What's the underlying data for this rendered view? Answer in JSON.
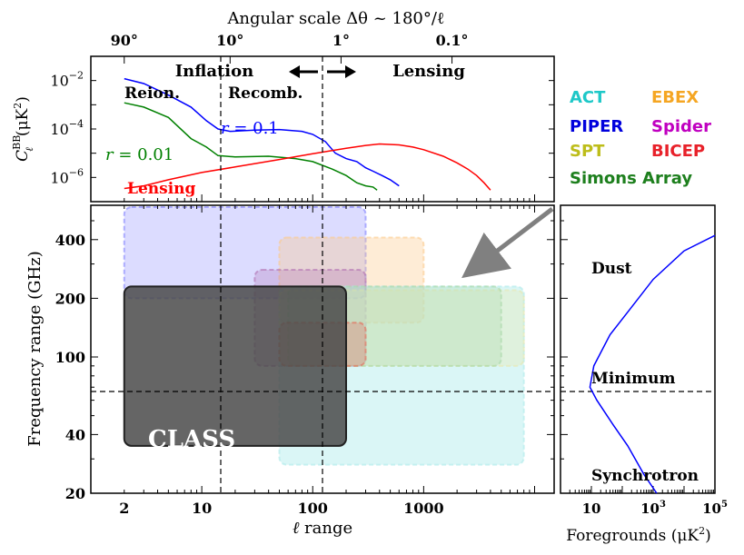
{
  "chart_data": [
    {
      "type": "line",
      "title": "Angular scale Δθ ~ 180°/ℓ",
      "top_axis_ticks": [
        "90°",
        "10°",
        "1°",
        "0.1°"
      ],
      "ylabel_main": "C",
      "ylabel_sup": "BB",
      "ylabel_sub": "ℓ",
      "ylabel_unit": "(μK",
      "ylabel_unit_sup": "2",
      "ylabel_unit_end": ")",
      "y_ticks": [
        {
          "base": "10",
          "exp": "−2"
        },
        {
          "base": "10",
          "exp": "−4"
        },
        {
          "base": "10",
          "exp": "−6"
        }
      ],
      "xscale": "log",
      "xlim": [
        1,
        15000
      ],
      "yscale": "log",
      "ylim": [
        1e-07,
        0.1
      ],
      "region_labels": {
        "inflation": "Inflation",
        "lensing": "Lensing",
        "reion": "Reion.",
        "recomb": "Recomb."
      },
      "series": [
        {
          "name": "r = 0.1",
          "color": "#0000ff",
          "points": [
            [
              2,
              0.012
            ],
            [
              3,
              0.0075
            ],
            [
              5,
              0.0025
            ],
            [
              8,
              0.0008
            ],
            [
              11,
              0.00022
            ],
            [
              14,
              0.0001
            ],
            [
              18,
              8e-05
            ],
            [
              30,
              9e-05
            ],
            [
              50,
              9.5e-05
            ],
            [
              80,
              8e-05
            ],
            [
              100,
              6e-05
            ],
            [
              130,
              3e-05
            ],
            [
              160,
              1e-05
            ],
            [
              200,
              6e-06
            ],
            [
              250,
              4.5e-06
            ],
            [
              300,
              2.5e-06
            ],
            [
              350,
              1.8e-06
            ],
            [
              420,
              1.2e-06
            ],
            [
              500,
              8e-07
            ],
            [
              600,
              4.5e-07
            ]
          ]
        },
        {
          "name": "r = 0.01",
          "color": "#008000",
          "points": [
            [
              2,
              0.0012
            ],
            [
              3,
              0.0008
            ],
            [
              5,
              0.0003
            ],
            [
              8,
              4e-05
            ],
            [
              11,
              1.8e-05
            ],
            [
              14,
              8e-06
            ],
            [
              20,
              7e-06
            ],
            [
              40,
              7.5e-06
            ],
            [
              70,
              6e-06
            ],
            [
              100,
              4.5e-06
            ],
            [
              150,
              2.2e-06
            ],
            [
              200,
              1.2e-06
            ],
            [
              250,
              6e-07
            ],
            [
              300,
              4.5e-07
            ],
            [
              350,
              4e-07
            ],
            [
              380,
              3e-07
            ]
          ]
        },
        {
          "name": "Lensing",
          "color": "#ff0000",
          "points": [
            [
              2,
              3.5e-07
            ],
            [
              3,
              4.5e-07
            ],
            [
              5,
              8e-07
            ],
            [
              10,
              1.6e-06
            ],
            [
              20,
              2.7e-06
            ],
            [
              50,
              5.5e-06
            ],
            [
              100,
              9.5e-06
            ],
            [
              200,
              1.6e-05
            ],
            [
              300,
              2.1e-05
            ],
            [
              400,
              2.4e-05
            ],
            [
              600,
              2.2e-05
            ],
            [
              800,
              1.8e-05
            ],
            [
              1000,
              1.4e-05
            ],
            [
              1500,
              7.5e-06
            ],
            [
              2000,
              4e-06
            ],
            [
              2500,
              2.2e-06
            ],
            [
              3000,
              1.2e-06
            ],
            [
              3500,
              6e-07
            ],
            [
              4000,
              3e-07
            ]
          ]
        }
      ],
      "legend": [
        {
          "name": "ACT",
          "color": "#1ec8c8"
        },
        {
          "name": "EBEX",
          "color": "#f5a623"
        },
        {
          "name": "PIPER",
          "color": "#0000dd"
        },
        {
          "name": "Spider",
          "color": "#c000c0"
        },
        {
          "name": "SPT",
          "color": "#bdbd1a"
        },
        {
          "name": "BICEP",
          "color": "#e8212a"
        },
        {
          "name": "Simons Array",
          "color": "#1d7f1d"
        }
      ]
    },
    {
      "type": "area",
      "xlabel": "ℓ range",
      "ylabel": "Frequency range (GHz)",
      "xscale": "log",
      "xlim": [
        1,
        15000
      ],
      "yscale": "log",
      "ylim": [
        20,
        600
      ],
      "x_ticks": [
        "2",
        "10",
        "100",
        "1000"
      ],
      "y_ticks": [
        "20",
        "40",
        "100",
        "200",
        "400"
      ],
      "reference_frequency_ghz": 70,
      "experiments": [
        {
          "name": "PIPER",
          "color": "#8080ff",
          "alpha": 0.28,
          "ell": [
            2,
            300
          ],
          "freq": [
            200,
            600
          ]
        },
        {
          "name": "EBEX",
          "color": "#fbc98a",
          "alpha": 0.35,
          "ell": [
            50,
            1000
          ],
          "freq": [
            150,
            410
          ]
        },
        {
          "name": "Spider",
          "color": "#b070b0",
          "alpha": 0.28,
          "ell": [
            30,
            300
          ],
          "freq": [
            90,
            280
          ]
        },
        {
          "name": "ACT",
          "color": "#aeeaea",
          "alpha": 0.45,
          "ell": [
            50,
            8000
          ],
          "freq": [
            28,
            230
          ]
        },
        {
          "name": "SPT",
          "color": "#e8e8b0",
          "alpha": 0.35,
          "ell": [
            50,
            8000
          ],
          "freq": [
            90,
            220
          ]
        },
        {
          "name": "Simons Array",
          "color": "#a8d8a8",
          "alpha": 0.3,
          "ell": [
            60,
            5000
          ],
          "freq": [
            90,
            230
          ]
        },
        {
          "name": "BICEP",
          "color": "#e56a5a",
          "alpha": 0.3,
          "ell": [
            50,
            300
          ],
          "freq": [
            90,
            150
          ]
        },
        {
          "name": "CLASS",
          "color": "#4a4a4a",
          "alpha": 0.85,
          "ell": [
            2,
            200
          ],
          "freq": [
            35,
            230
          ]
        }
      ],
      "class_label": "CLASS"
    },
    {
      "type": "line",
      "xlabel": "Foregrounds (μK",
      "xlabel_sup": "2",
      "xlabel_end": ")",
      "xscale": "log",
      "xlim": [
        1,
        100000
      ],
      "yscale": "log",
      "ylim": [
        20,
        600
      ],
      "x_ticks": [
        {
          "base": "10",
          "exp": ""
        },
        {
          "base": "10",
          "exp": "3"
        },
        {
          "base": "10",
          "exp": "5"
        }
      ],
      "labels": {
        "dust": "Dust",
        "minimum": "Minimum",
        "synchrotron": "Synchrotron"
      },
      "points": [
        [
          1300,
          20
        ],
        [
          500,
          25
        ],
        [
          150,
          35
        ],
        [
          50,
          45
        ],
        [
          15,
          60
        ],
        [
          9,
          70
        ],
        [
          12,
          90
        ],
        [
          40,
          130
        ],
        [
          200,
          180
        ],
        [
          1000,
          250
        ],
        [
          10000,
          350
        ],
        [
          100000,
          420
        ]
      ]
    }
  ]
}
